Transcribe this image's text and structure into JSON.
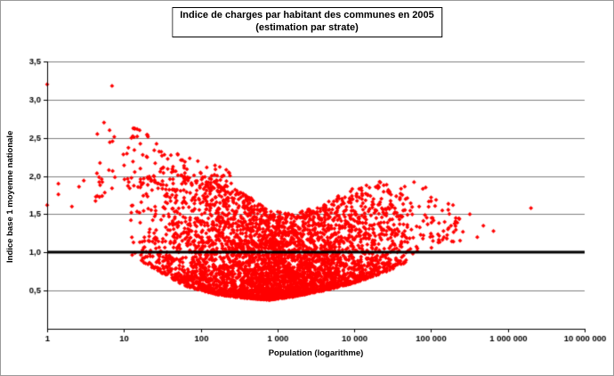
{
  "chart_data": {
    "type": "scatter",
    "title": "Indice de charges par habitant des communes en 2005 (estimation par strate)",
    "title_line1": "Indice de charges par habitant des communes en 2005",
    "title_line2": "(estimation par strate)",
    "xlabel": "Population (logarithme)",
    "ylabel": "Indice base 1 moyenne nationale",
    "x_scale": "log",
    "xlim": [
      1,
      10000000
    ],
    "ylim": [
      0,
      3.5
    ],
    "x_tick_labels": [
      "1",
      "10",
      "100",
      "1 000",
      "10 000",
      "100 000",
      "1 000 000",
      "10 000 000"
    ],
    "x_tick_values": [
      1,
      10,
      100,
      1000,
      10000,
      100000,
      1000000,
      10000000
    ],
    "y_tick_labels": [
      "0,5",
      "1,0",
      "1,5",
      "2,0",
      "2,5",
      "3,0",
      "3,5"
    ],
    "y_tick_values": [
      0.5,
      1.0,
      1.5,
      2.0,
      2.5,
      3.0,
      3.5
    ],
    "grid": true,
    "grid_color": "#808080",
    "axis_color": "#000000",
    "reference_line": {
      "y": 1.0,
      "color": "#000000",
      "width": 3
    },
    "marker": {
      "shape": "diamond",
      "color": "#ff0000",
      "size": 2.4
    },
    "legend": "none",
    "point_generator": {
      "seed": 20051,
      "clusters": [
        {
          "name": "main-cloud",
          "count": 4200,
          "u_min": 1.05,
          "u_max": 4.85,
          "u_dist": "triangular",
          "lower_env": [
            [
              1.05,
              0.97
            ],
            [
              1.4,
              0.78
            ],
            [
              1.8,
              0.56
            ],
            [
              2.2,
              0.45
            ],
            [
              2.6,
              0.4
            ],
            [
              2.9,
              0.38
            ],
            [
              3.2,
              0.42
            ],
            [
              3.6,
              0.5
            ],
            [
              4.0,
              0.6
            ],
            [
              4.4,
              0.74
            ],
            [
              4.85,
              0.95
            ]
          ],
          "upper_env": [
            [
              1.05,
              2.05
            ],
            [
              1.4,
              2.15
            ],
            [
              1.8,
              2.05
            ],
            [
              2.2,
              1.95
            ],
            [
              2.6,
              1.75
            ],
            [
              2.9,
              1.55
            ],
            [
              3.2,
              1.5
            ],
            [
              3.6,
              1.65
            ],
            [
              4.0,
              1.85
            ],
            [
              4.4,
              1.95
            ],
            [
              4.85,
              1.55
            ]
          ],
          "shape": 1.8
        },
        {
          "name": "left-halo",
          "count": 110,
          "u_min": 0.55,
          "u_max": 2.4,
          "u_dist": "uniform",
          "lower_env": [
            [
              0.55,
              1.5
            ],
            [
              1.0,
              1.8
            ],
            [
              1.6,
              1.9
            ],
            [
              2.4,
              1.85
            ]
          ],
          "upper_env": [
            [
              0.55,
              2.1
            ],
            [
              1.0,
              2.75
            ],
            [
              1.6,
              2.35
            ],
            [
              2.4,
              2.1
            ]
          ],
          "shape": 1.0
        },
        {
          "name": "right-tail",
          "count": 80,
          "u_min": 4.55,
          "u_max": 5.4,
          "u_dist": "uniform",
          "lower_env": [
            [
              4.55,
              0.95
            ],
            [
              5.0,
              1.05
            ],
            [
              5.4,
              1.15
            ]
          ],
          "upper_env": [
            [
              4.55,
              1.95
            ],
            [
              5.0,
              1.8
            ],
            [
              5.4,
              1.55
            ]
          ],
          "shape": 1.0
        }
      ]
    },
    "outliers": [
      [
        1,
        3.2
      ],
      [
        7,
        3.18
      ],
      [
        5.5,
        2.7
      ],
      [
        6.5,
        2.6
      ],
      [
        4.5,
        2.55
      ],
      [
        13,
        2.52
      ],
      [
        16,
        2.6
      ],
      [
        1.4,
        1.9
      ],
      [
        1.4,
        1.76
      ],
      [
        2.1,
        1.6
      ],
      [
        3,
        1.94
      ],
      [
        2.6,
        1.86
      ],
      [
        1,
        1.62
      ],
      [
        60000,
        1.92
      ],
      [
        70000,
        1.6
      ],
      [
        85000,
        1.85
      ],
      [
        100000,
        1.72
      ],
      [
        105000,
        1.45
      ],
      [
        140000,
        1.55
      ],
      [
        170000,
        1.32
      ],
      [
        210000,
        1.45
      ],
      [
        260000,
        1.27
      ],
      [
        320000,
        1.5
      ],
      [
        400000,
        1.2
      ],
      [
        480000,
        1.35
      ],
      [
        650000,
        1.28
      ],
      [
        2000000,
        1.58
      ]
    ]
  }
}
